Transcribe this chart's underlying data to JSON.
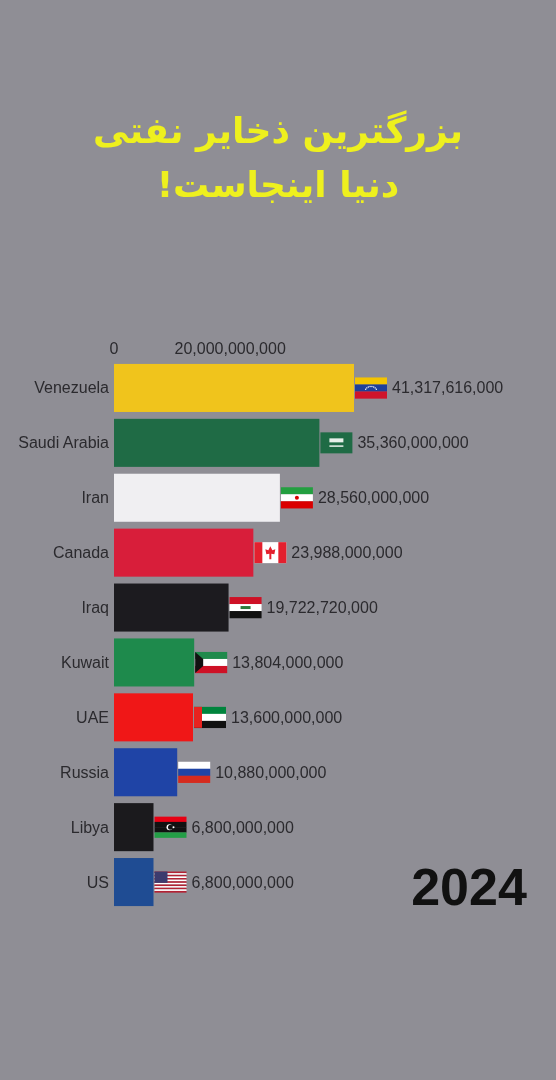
{
  "chart_data": {
    "type": "bar",
    "orientation": "horizontal",
    "title": "بزرگترین ذخایر نفتی دنیا اینجاست!",
    "categories": [
      "Venezuela",
      "Saudi Arabia",
      "Iran",
      "Canada",
      "Iraq",
      "Kuwait",
      "UAE",
      "Russia",
      "Libya",
      "US"
    ],
    "values": [
      41317616000,
      35360000000,
      28560000000,
      23988000000,
      19722720000,
      13804000000,
      13600000000,
      10880000000,
      6800000000,
      6800000000
    ],
    "colors": [
      "#f0c41c",
      "#1f6b45",
      "#f0eff2",
      "#d81e3a",
      "#1c1b1f",
      "#1e8a4c",
      "#f01717",
      "#1f44a6",
      "#1b1a1d",
      "#1f4c93"
    ],
    "value_labels": [
      "41,317,616,000",
      "35,360,000,000",
      "28,560,000,000",
      "23,988,000,000",
      "19,722,720,000",
      "13,804,000,000",
      "13,600,000,000",
      "10,880,000,000",
      "6,800,000,000",
      "6,800,000,000"
    ],
    "xlim": [
      0,
      41317616000
    ],
    "xticks": [
      0,
      {
        "value": 20000000000,
        "label": "20,000,000,000"
      }
    ],
    "annotations": [
      "2024"
    ]
  }
}
